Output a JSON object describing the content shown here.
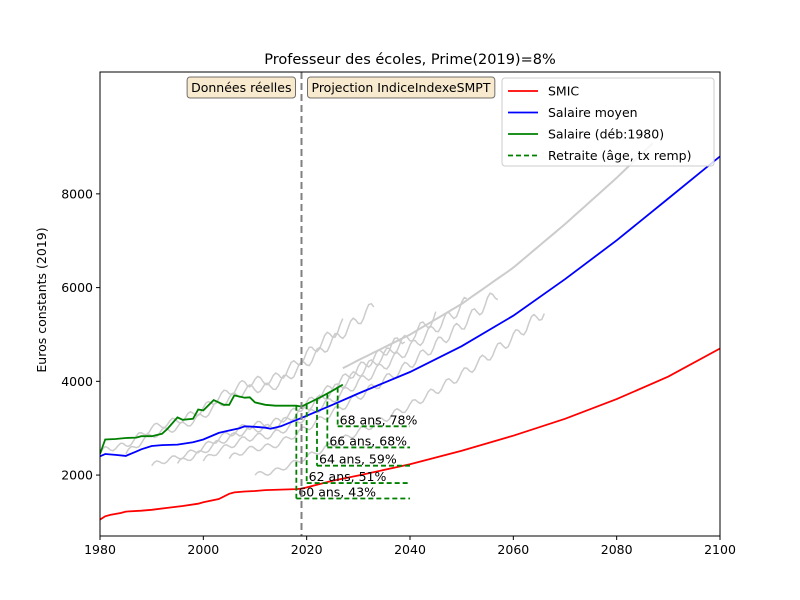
{
  "chart_data": {
    "type": "line",
    "title": "Professeur des écoles, Prime(2019)=8%",
    "xlabel": "",
    "ylabel": "Euros constants (2019)",
    "xlim": [
      1980,
      2100
    ],
    "ylim": [
      700,
      10600
    ],
    "xticks": [
      1980,
      2000,
      2020,
      2040,
      2060,
      2080,
      2100
    ],
    "yticks": [
      2000,
      4000,
      6000,
      8000
    ],
    "grid": false,
    "legend_position": "top-right",
    "colors": {
      "smic": "#ff0000",
      "salaire_moyen": "#0000ff",
      "salaire_carriere": "#008000",
      "retraite": "#008000",
      "cohortes": "#cccccc",
      "separateur": "#808080",
      "annotation_bg": "#f5deb3"
    },
    "divider_year": 2019,
    "annotations": {
      "left": "Données réelles",
      "right": "Projection IndiceIndexeSMPT"
    },
    "series": [
      {
        "name": "SMIC",
        "key": "smic",
        "x": [
          1980,
          1981,
          1982,
          1984,
          1985,
          1988,
          1990,
          1993,
          1996,
          1999,
          2000,
          2003,
          2005,
          2006,
          2008,
          2010,
          2012,
          2015,
          2018,
          2019,
          2025,
          2030,
          2040,
          2050,
          2060,
          2070,
          2080,
          2090,
          2100
        ],
        "values": [
          1050,
          1120,
          1150,
          1190,
          1220,
          1240,
          1260,
          1300,
          1340,
          1390,
          1420,
          1490,
          1600,
          1630,
          1650,
          1660,
          1680,
          1690,
          1700,
          1710,
          1880,
          1990,
          2230,
          2520,
          2840,
          3200,
          3620,
          4100,
          4700
        ]
      },
      {
        "name": "Salaire moyen",
        "key": "salaire_moyen",
        "x": [
          1980,
          1981,
          1983,
          1985,
          1987,
          1988,
          1990,
          1992,
          1995,
          1998,
          2000,
          2003,
          2005,
          2007,
          2008,
          2010,
          2012,
          2013,
          2015,
          2017,
          2019,
          2025,
          2030,
          2040,
          2050,
          2060,
          2070,
          2080,
          2090,
          2100
        ],
        "values": [
          2400,
          2450,
          2430,
          2410,
          2500,
          2550,
          2620,
          2640,
          2650,
          2700,
          2760,
          2900,
          2950,
          3000,
          3040,
          3030,
          3010,
          2990,
          3040,
          3130,
          3220,
          3500,
          3740,
          4200,
          4750,
          5400,
          6180,
          7010,
          7900,
          8800
        ]
      },
      {
        "name": "Salaire (déb:1980)",
        "key": "salaire_carriere",
        "x": [
          1980,
          1981,
          1983,
          1985,
          1987,
          1988,
          1990,
          1992,
          1993,
          1995,
          1996,
          1998,
          1999,
          2000,
          2002,
          2003,
          2004,
          2005,
          2006,
          2008,
          2009,
          2010,
          2012,
          2014,
          2016,
          2018,
          2019,
          2021,
          2023,
          2025,
          2027
        ],
        "values": [
          2450,
          2760,
          2770,
          2790,
          2800,
          2830,
          2830,
          2880,
          2980,
          3230,
          3180,
          3200,
          3400,
          3380,
          3600,
          3550,
          3500,
          3500,
          3700,
          3650,
          3660,
          3550,
          3500,
          3480,
          3480,
          3480,
          3460,
          3570,
          3680,
          3800,
          3930
        ]
      }
    ],
    "cohortes": {
      "start_years": [
        1980,
        1985,
        1990,
        1995,
        2000,
        2005,
        2010
      ],
      "end_years": [
        2027,
        2033,
        2039,
        2045,
        2051,
        2057,
        2066
      ],
      "entry_values": [
        2450,
        2450,
        2200,
        2250,
        2300,
        2350,
        2000
      ]
    },
    "retraite": [
      {
        "label": "60 ans, 43%",
        "age": 60,
        "taux": 43,
        "year_start": 2018,
        "level": 1500
      },
      {
        "label": "62 ans, 51%",
        "age": 62,
        "taux": 51,
        "year_start": 2020,
        "level": 1830
      },
      {
        "label": "64 ans, 59%",
        "age": 64,
        "taux": 59,
        "year_start": 2022,
        "level": 2200
      },
      {
        "label": "66 ans, 68%",
        "age": 66,
        "taux": 68,
        "year_start": 2024,
        "level": 2590
      },
      {
        "label": "68 ans, 78%",
        "age": 68,
        "taux": 78,
        "year_start": 2026,
        "level": 3040
      }
    ],
    "retraite_end_year": 2040,
    "legend": [
      {
        "label": "SMIC",
        "key": "smic",
        "dashed": false
      },
      {
        "label": "Salaire moyen",
        "key": "salaire_moyen",
        "dashed": false
      },
      {
        "label": "Salaire (déb:1980)",
        "key": "salaire_carriere",
        "dashed": false
      },
      {
        "label": "Retraite (âge, tx remp)",
        "key": "retraite",
        "dashed": true
      }
    ]
  }
}
